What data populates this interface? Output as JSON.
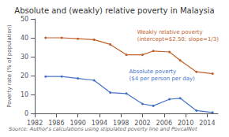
{
  "chart_data": {
    "type": "line",
    "title": "Absolute and (weakly) relative poverty in Malaysia",
    "ylabel": "Poverty rate (% of population)",
    "source": "Source: Author's calculations using stipulated poverty line and PovcalNet",
    "x": [
      1984,
      1987,
      1990,
      1993,
      1996,
      1999,
      2002,
      2004,
      2007,
      2009,
      2012,
      2015
    ],
    "series": [
      {
        "color": "#4472C4",
        "values": [
          19.5,
          19.5,
          18.5,
          17.5,
          11.0,
          10.5,
          5.0,
          4.0,
          7.5,
          8.0,
          1.5,
          0.5
        ]
      },
      {
        "color": "#C0612B",
        "values": [
          40.0,
          40.0,
          39.5,
          39.0,
          36.5,
          31.0,
          31.0,
          33.0,
          32.5,
          28.0,
          22.0,
          21.0
        ]
      }
    ],
    "annotations": [
      {
        "text": "Weakly relative poverty\n(intercept=$2.50; slope=1/3)",
        "x": 2001,
        "y": 37.5,
        "color": "#C0612B"
      },
      {
        "text": "Absolute poverty\n($4 per person per day)",
        "x": 1999.5,
        "y": 16.5,
        "color": "#4472C4"
      }
    ],
    "marker": "circle",
    "xlim": [
      1982,
      2016
    ],
    "xticks": [
      1982,
      1986,
      1990,
      1994,
      1998,
      2002,
      2006,
      2010,
      2014
    ],
    "ylim": [
      0,
      50
    ],
    "yticks": [
      0,
      10,
      20,
      30,
      40,
      50
    ],
    "grid": false
  }
}
